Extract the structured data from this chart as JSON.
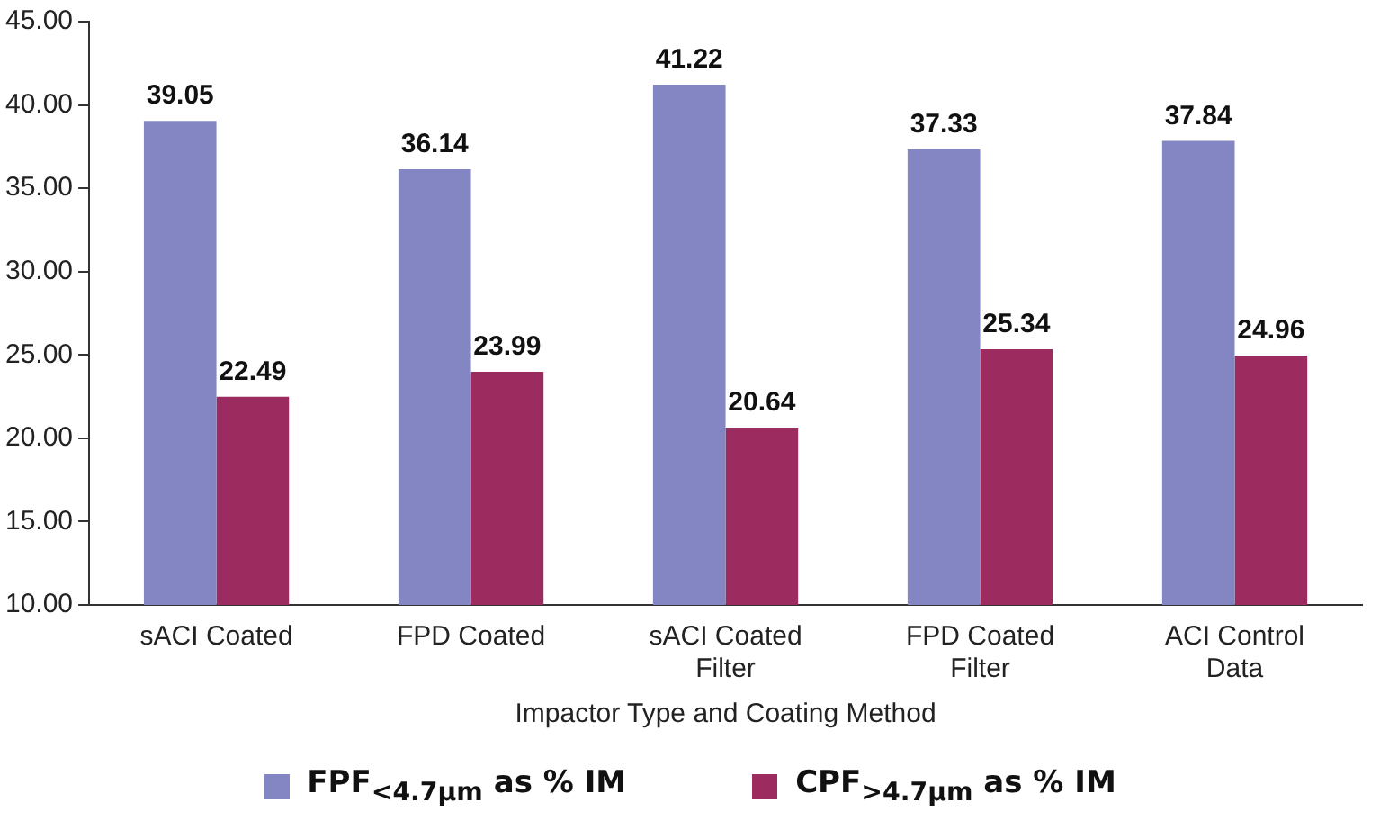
{
  "chart_data": {
    "type": "bar",
    "xlabel": "Impactor Type and Coating Method",
    "categories": [
      "sACI Coated",
      "FPD Coated",
      "sACI Coated Filter",
      "FPD Coated Filter",
      "ACI Control Data"
    ],
    "series": [
      {
        "name": "FPF$_{<4.7μm}$ as % IM",
        "color": "#8386c2",
        "values": [
          39.05,
          36.14,
          41.22,
          37.33,
          37.84
        ]
      },
      {
        "name": "CPF$_{>4.7μm}$ as % IM",
        "color": "#9c2c5f",
        "values": [
          22.49,
          23.99,
          20.64,
          25.34,
          24.96
        ]
      }
    ],
    "ylim": [
      10,
      45
    ],
    "yticks": [
      {
        "value": 10,
        "label": "10.00"
      },
      {
        "value": 15,
        "label": "15.00"
      },
      {
        "value": 20,
        "label": "20.00"
      },
      {
        "value": 25,
        "label": "25.00"
      },
      {
        "value": 30,
        "label": "30.00"
      },
      {
        "value": 35,
        "label": "35.00"
      },
      {
        "value": 40,
        "label": "40.00"
      },
      {
        "value": 45,
        "label": "45.00"
      }
    ],
    "grid": false,
    "legend": "bottom",
    "data_labels": true
  }
}
